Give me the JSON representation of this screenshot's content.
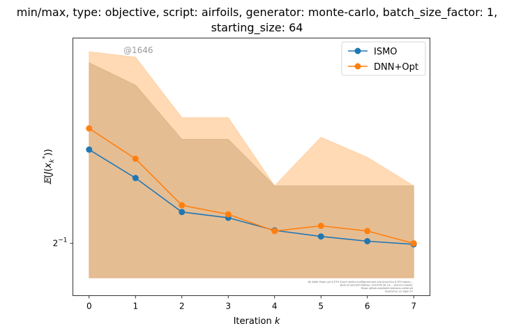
{
  "chart_data": {
    "type": "line",
    "title_line1": "min/max, type: objective, script: airfoils, generator: monte-carlo, batch_size_factor: 1,",
    "title_line2": "starting_size: 64",
    "xlabel": "Iteration k",
    "ylabel": "E(J(x_k*))",
    "x": [
      0,
      1,
      2,
      3,
      4,
      5,
      6,
      7
    ],
    "x_ticks": [
      "0",
      "1",
      "2",
      "3",
      "4",
      "5",
      "6",
      "7"
    ],
    "y_ticks": [
      {
        "value": 0.5,
        "label": "2^-1"
      }
    ],
    "yscale": "log2",
    "xlim": [
      -0.35,
      7.35
    ],
    "ylim": [
      0.4765,
      0.6035
    ],
    "legend_position": "upper right",
    "watermark": "@1646",
    "credit_lines": [
      "By Kjetil Olsen Lye & ETH Zurich  kjetil.o.lye@gmail.com  and Anna Eva & ETH  ebneu...",
      "Built at lastcommitdate= 2019-09-18 14:... branch=master",
      "Repo: github.com/kjetil-lye/ismo_airfoil.git",
      "Hostname: eu-login-37"
    ],
    "series": [
      {
        "name": "ISMO",
        "color": "#1f77b4",
        "values": [
          0.5448,
          0.5308,
          0.5145,
          0.5118,
          0.5059,
          0.5031,
          0.5009,
          0.4995
        ],
        "band_min": [
          0.4843,
          0.4843,
          0.4843,
          0.4843,
          0.4843,
          0.4843,
          0.4843,
          0.4843
        ],
        "band_max": [
          0.59,
          0.578,
          0.55,
          0.55,
          0.527,
          0.527,
          0.527,
          0.527
        ],
        "band_color": "#8c7f6a"
      },
      {
        "name": "DNN+Opt",
        "color": "#ff7f0e",
        "values": [
          0.5555,
          0.5402,
          0.5177,
          0.5134,
          0.5056,
          0.508,
          0.5056,
          0.4999
        ],
        "band_min": [
          0.4843,
          0.4843,
          0.4843,
          0.4843,
          0.4843,
          0.4843,
          0.4843,
          0.4843
        ],
        "band_max": [
          0.596,
          0.593,
          0.561,
          0.561,
          0.527,
          0.551,
          0.541,
          0.527
        ],
        "band_color": "#ffbb78"
      }
    ]
  }
}
